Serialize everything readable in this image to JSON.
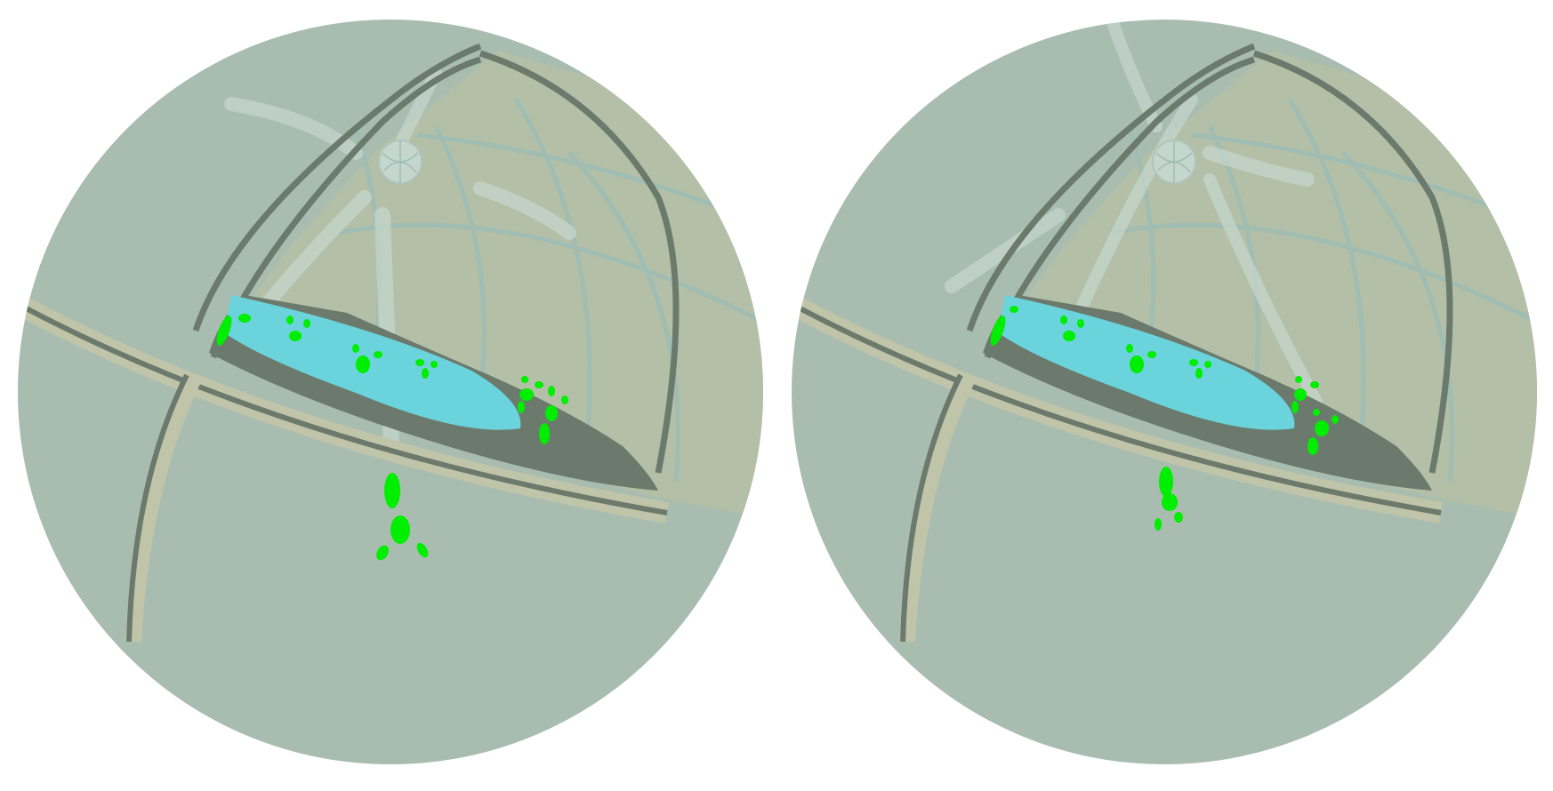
{
  "comparison": {
    "panels": [
      {
        "id": "left",
        "view": "lens-view"
      },
      {
        "id": "right",
        "view": "lens-view"
      }
    ]
  },
  "colors": {
    "background": "#ffffff",
    "fog": "#a8bdb0",
    "ground_tint": "#b3bfa6",
    "outline": "#6b7a6c",
    "pool": "#6bd3dc",
    "marker": "#00ee00",
    "grid": "#9dbdb6",
    "highlight": "#c5d6cc"
  },
  "icons": {
    "marker": "footprint-marker-icon",
    "orb": "globe-orb-icon"
  }
}
